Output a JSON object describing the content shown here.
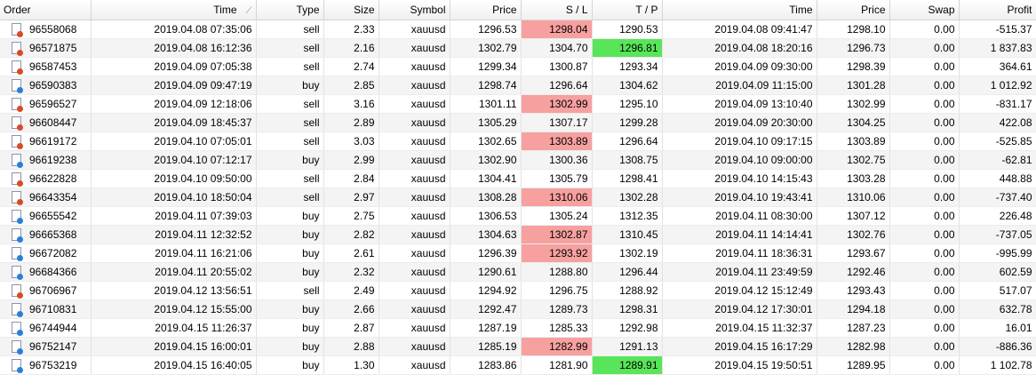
{
  "columns": {
    "order": "Order",
    "time": "Time",
    "type": "Type",
    "size": "Size",
    "symbol": "Symbol",
    "price": "Price",
    "sl": "S / L",
    "tp": "T / P",
    "close_time": "Time",
    "close_price": "Price",
    "swap": "Swap",
    "profit": "Profit"
  },
  "colors": {
    "sell_icon_dot": "#d94a2a",
    "buy_icon_dot": "#2a7fd9",
    "sl_hit": "#f7a0a0",
    "tp_hit": "#59e559"
  },
  "rows": [
    {
      "order": "96558068",
      "time": "2019.04.08 07:35:06",
      "type": "sell",
      "size": "2.33",
      "symbol": "xauusd",
      "price": "1296.53",
      "sl": "1298.04",
      "tp": "1290.53",
      "close_time": "2019.04.08 09:41:47",
      "close_price": "1298.10",
      "swap": "0.00",
      "profit": "-515.37",
      "hit": "sl"
    },
    {
      "order": "96571875",
      "time": "2019.04.08 16:12:36",
      "type": "sell",
      "size": "2.16",
      "symbol": "xauusd",
      "price": "1302.79",
      "sl": "1304.70",
      "tp": "1296.81",
      "close_time": "2019.04.08 18:20:16",
      "close_price": "1296.73",
      "swap": "0.00",
      "profit": "1 837.83",
      "hit": "tp"
    },
    {
      "order": "96587453",
      "time": "2019.04.09 07:05:38",
      "type": "sell",
      "size": "2.74",
      "symbol": "xauusd",
      "price": "1299.34",
      "sl": "1300.87",
      "tp": "1293.34",
      "close_time": "2019.04.09 09:30:00",
      "close_price": "1298.39",
      "swap": "0.00",
      "profit": "364.61",
      "hit": ""
    },
    {
      "order": "96590383",
      "time": "2019.04.09 09:47:19",
      "type": "buy",
      "size": "2.85",
      "symbol": "xauusd",
      "price": "1298.74",
      "sl": "1296.64",
      "tp": "1304.62",
      "close_time": "2019.04.09 11:15:00",
      "close_price": "1301.28",
      "swap": "0.00",
      "profit": "1 012.92",
      "hit": ""
    },
    {
      "order": "96596527",
      "time": "2019.04.09 12:18:06",
      "type": "sell",
      "size": "3.16",
      "symbol": "xauusd",
      "price": "1301.11",
      "sl": "1302.99",
      "tp": "1295.10",
      "close_time": "2019.04.09 13:10:40",
      "close_price": "1302.99",
      "swap": "0.00",
      "profit": "-831.17",
      "hit": "sl"
    },
    {
      "order": "96608447",
      "time": "2019.04.09 18:45:37",
      "type": "sell",
      "size": "2.89",
      "symbol": "xauusd",
      "price": "1305.29",
      "sl": "1307.17",
      "tp": "1299.28",
      "close_time": "2019.04.09 20:30:00",
      "close_price": "1304.25",
      "swap": "0.00",
      "profit": "422.08",
      "hit": ""
    },
    {
      "order": "96619172",
      "time": "2019.04.10 07:05:01",
      "type": "sell",
      "size": "3.03",
      "symbol": "xauusd",
      "price": "1302.65",
      "sl": "1303.89",
      "tp": "1296.64",
      "close_time": "2019.04.10 09:17:15",
      "close_price": "1303.89",
      "swap": "0.00",
      "profit": "-525.85",
      "hit": "sl"
    },
    {
      "order": "96619238",
      "time": "2019.04.10 07:12:17",
      "type": "buy",
      "size": "2.99",
      "symbol": "xauusd",
      "price": "1302.90",
      "sl": "1300.36",
      "tp": "1308.75",
      "close_time": "2019.04.10 09:00:00",
      "close_price": "1302.75",
      "swap": "0.00",
      "profit": "-62.81",
      "hit": ""
    },
    {
      "order": "96622828",
      "time": "2019.04.10 09:50:00",
      "type": "sell",
      "size": "2.84",
      "symbol": "xauusd",
      "price": "1304.41",
      "sl": "1305.79",
      "tp": "1298.41",
      "close_time": "2019.04.10 14:15:43",
      "close_price": "1303.28",
      "swap": "0.00",
      "profit": "448.88",
      "hit": ""
    },
    {
      "order": "96643354",
      "time": "2019.04.10 18:50:04",
      "type": "sell",
      "size": "2.97",
      "symbol": "xauusd",
      "price": "1308.28",
      "sl": "1310.06",
      "tp": "1302.28",
      "close_time": "2019.04.10 19:43:41",
      "close_price": "1310.06",
      "swap": "0.00",
      "profit": "-737.40",
      "hit": "sl"
    },
    {
      "order": "96655542",
      "time": "2019.04.11 07:39:03",
      "type": "buy",
      "size": "2.75",
      "symbol": "xauusd",
      "price": "1306.53",
      "sl": "1305.24",
      "tp": "1312.35",
      "close_time": "2019.04.11 08:30:00",
      "close_price": "1307.12",
      "swap": "0.00",
      "profit": "226.48",
      "hit": ""
    },
    {
      "order": "96665368",
      "time": "2019.04.11 12:32:52",
      "type": "buy",
      "size": "2.82",
      "symbol": "xauusd",
      "price": "1304.63",
      "sl": "1302.87",
      "tp": "1310.45",
      "close_time": "2019.04.11 14:14:41",
      "close_price": "1302.76",
      "swap": "0.00",
      "profit": "-737.05",
      "hit": "sl"
    },
    {
      "order": "96672082",
      "time": "2019.04.11 16:21:06",
      "type": "buy",
      "size": "2.61",
      "symbol": "xauusd",
      "price": "1296.39",
      "sl": "1293.92",
      "tp": "1302.19",
      "close_time": "2019.04.11 18:36:31",
      "close_price": "1293.67",
      "swap": "0.00",
      "profit": "-995.99",
      "hit": "sl"
    },
    {
      "order": "96684366",
      "time": "2019.04.11 20:55:02",
      "type": "buy",
      "size": "2.32",
      "symbol": "xauusd",
      "price": "1290.61",
      "sl": "1288.80",
      "tp": "1296.44",
      "close_time": "2019.04.11 23:49:59",
      "close_price": "1292.46",
      "swap": "0.00",
      "profit": "602.59",
      "hit": ""
    },
    {
      "order": "96706967",
      "time": "2019.04.12 13:56:51",
      "type": "sell",
      "size": "2.49",
      "symbol": "xauusd",
      "price": "1294.92",
      "sl": "1296.75",
      "tp": "1288.92",
      "close_time": "2019.04.12 15:12:49",
      "close_price": "1293.43",
      "swap": "0.00",
      "profit": "517.07",
      "hit": ""
    },
    {
      "order": "96710831",
      "time": "2019.04.12 15:55:00",
      "type": "buy",
      "size": "2.66",
      "symbol": "xauusd",
      "price": "1292.47",
      "sl": "1289.73",
      "tp": "1298.31",
      "close_time": "2019.04.12 17:30:01",
      "close_price": "1294.18",
      "swap": "0.00",
      "profit": "632.78",
      "hit": ""
    },
    {
      "order": "96744944",
      "time": "2019.04.15 11:26:37",
      "type": "buy",
      "size": "2.87",
      "symbol": "xauusd",
      "price": "1287.19",
      "sl": "1285.33",
      "tp": "1292.98",
      "close_time": "2019.04.15 11:32:37",
      "close_price": "1287.23",
      "swap": "0.00",
      "profit": "16.01",
      "hit": ""
    },
    {
      "order": "96752147",
      "time": "2019.04.15 16:00:01",
      "type": "buy",
      "size": "2.88",
      "symbol": "xauusd",
      "price": "1285.19",
      "sl": "1282.99",
      "tp": "1291.13",
      "close_time": "2019.04.15 16:17:29",
      "close_price": "1282.98",
      "swap": "0.00",
      "profit": "-886.36",
      "hit": "sl"
    },
    {
      "order": "96753219",
      "time": "2019.04.15 16:40:05",
      "type": "buy",
      "size": "1.30",
      "symbol": "xauusd",
      "price": "1283.86",
      "sl": "1281.90",
      "tp": "1289.91",
      "close_time": "2019.04.15 19:50:51",
      "close_price": "1289.95",
      "swap": "0.00",
      "profit": "1 102.78",
      "hit": "tp"
    }
  ]
}
